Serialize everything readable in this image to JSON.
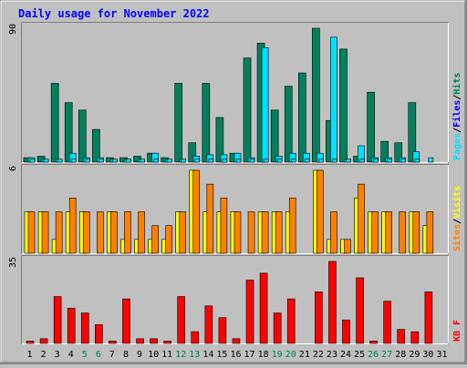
{
  "chart_data": {
    "type": "bar",
    "title": "Daily usage for November 2022",
    "categories": [
      "1",
      "2",
      "3",
      "4",
      "5",
      "6",
      "7",
      "8",
      "9",
      "10",
      "11",
      "12",
      "13",
      "14",
      "15",
      "16",
      "17",
      "18",
      "19",
      "20",
      "21",
      "22",
      "23",
      "24",
      "25",
      "26",
      "27",
      "28",
      "29",
      "30",
      "31"
    ],
    "weekend_days": [
      "5",
      "6",
      "12",
      "13",
      "19",
      "20",
      "26",
      "27"
    ],
    "panels": [
      {
        "id": "hits_files_pages",
        "ymax_label": "90",
        "ymax": 90,
        "right_label": [
          "Pages",
          "/",
          "Files",
          "/",
          "Hits"
        ],
        "series": [
          {
            "name": "Hits",
            "color": "#00805c",
            "values": [
              3,
              4,
              53,
              40,
              35,
              22,
              3,
              3,
              4,
              6,
              3,
              53,
              13,
              53,
              30,
              6,
              70,
              80,
              35,
              51,
              60,
              90,
              28,
              76,
              4,
              47,
              14,
              13,
              40,
              0,
              0
            ]
          },
          {
            "name": "Files",
            "color": "#00e0ff",
            "values": [
              3,
              2,
              2,
              6,
              3,
              3,
              2,
              2,
              2,
              6,
              2,
              2,
              4,
              5,
              5,
              6,
              3,
              77,
              4,
              6,
              6,
              6,
              84,
              2,
              11,
              3,
              3,
              3,
              7,
              0,
              0
            ]
          },
          {
            "name": "Pages",
            "color": "#00e0ff",
            "values": [
              2,
              2,
              2,
              2,
              2,
              2,
              2,
              2,
              2,
              2,
              2,
              2,
              2,
              2,
              2,
              2,
              2,
              2,
              2,
              2,
              2,
              2,
              2,
              2,
              2,
              2,
              2,
              2,
              2,
              3,
              0
            ]
          }
        ]
      },
      {
        "id": "sites_visits",
        "ymax_label": "6",
        "ymax": 6,
        "right_label": [
          "Sites",
          "/",
          "Visits"
        ],
        "series": [
          {
            "name": "Visits",
            "color": "#ffff00",
            "values": [
              3,
              3,
              1,
              3,
              3,
              0,
              3,
              1,
              1,
              1,
              1,
              3,
              6,
              3,
              3,
              3,
              0,
              3,
              3,
              3,
              0,
              6,
              1,
              1,
              4,
              3,
              3,
              0,
              3,
              2,
              0
            ]
          },
          {
            "name": "Sites",
            "color": "#ff8000",
            "values": [
              3,
              3,
              3,
              4,
              3,
              3,
              3,
              3,
              3,
              2,
              2,
              3,
              6,
              5,
              4,
              3,
              3,
              3,
              3,
              4,
              0,
              6,
              3,
              1,
              5,
              3,
              3,
              3,
              3,
              3,
              0
            ]
          }
        ]
      },
      {
        "id": "kbytes",
        "ymax_label": "35",
        "ymax": 35,
        "right_label": [
          "KB F"
        ],
        "series": [
          {
            "name": "KB F",
            "color": "#ff0000",
            "values": [
              1,
              2,
              20,
              15,
              13,
              8,
              1,
              19,
              2,
              2,
              1,
              20,
              5,
              16,
              11,
              2,
              27,
              30,
              13,
              19,
              0,
              22,
              35,
              10,
              28,
              1,
              18,
              6,
              5,
              22,
              0
            ]
          }
        ]
      }
    ]
  },
  "colors": {
    "background": "#c0c0c0",
    "plot_background": "#c0c0c0",
    "title": "#0000ff",
    "weekday_label": "#000000",
    "weekend_label": "#00805c",
    "label_pages": "#00e0ff",
    "label_files": "#0000ff",
    "label_hits": "#00805c",
    "label_sites": "#ff8000",
    "label_visits": "#ffff00",
    "label_kbytes": "#ff0000",
    "separator": "#000000"
  }
}
